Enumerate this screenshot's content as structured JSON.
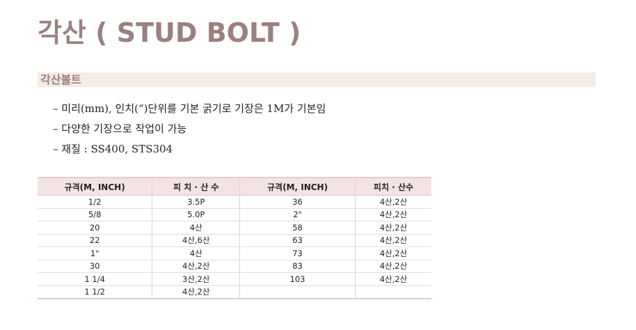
{
  "title": "각산 ( STUD BOLT )",
  "section": "각산볼트",
  "bullets": [
    "– 미리(mm), 인치(“)단위를 기본 굵기로 기장은 1M가 기본임",
    "– 다양한 기장으로 작업이 가능",
    "– 재질 : SS400, STS304"
  ],
  "table": {
    "headers": [
      "규격(M, INCH)",
      "피 치 · 산 수",
      "규격(M, INCH)",
      "피치 · 산수"
    ],
    "rows": [
      [
        "1/2",
        "3.5P",
        "36",
        "4산,2산"
      ],
      [
        "5/8",
        "5.0P",
        "2\"",
        "4산,2산"
      ],
      [
        "20",
        "4산",
        "58",
        "4산,2산"
      ],
      [
        "22",
        "4산,6산",
        "63",
        "4산,2산"
      ],
      [
        "1\"",
        "4산",
        "73",
        "4산,2산"
      ],
      [
        "30",
        "4산,2산",
        "83",
        "4산,2산"
      ],
      [
        "1 1/4",
        "3산,2산",
        "103",
        "4산,2산"
      ],
      [
        "1 1/2",
        "4산,2산",
        "",
        ""
      ]
    ]
  },
  "colors": {
    "title": "#9b8080",
    "band": "#f5ebe7",
    "header": "#f3e4e3"
  }
}
